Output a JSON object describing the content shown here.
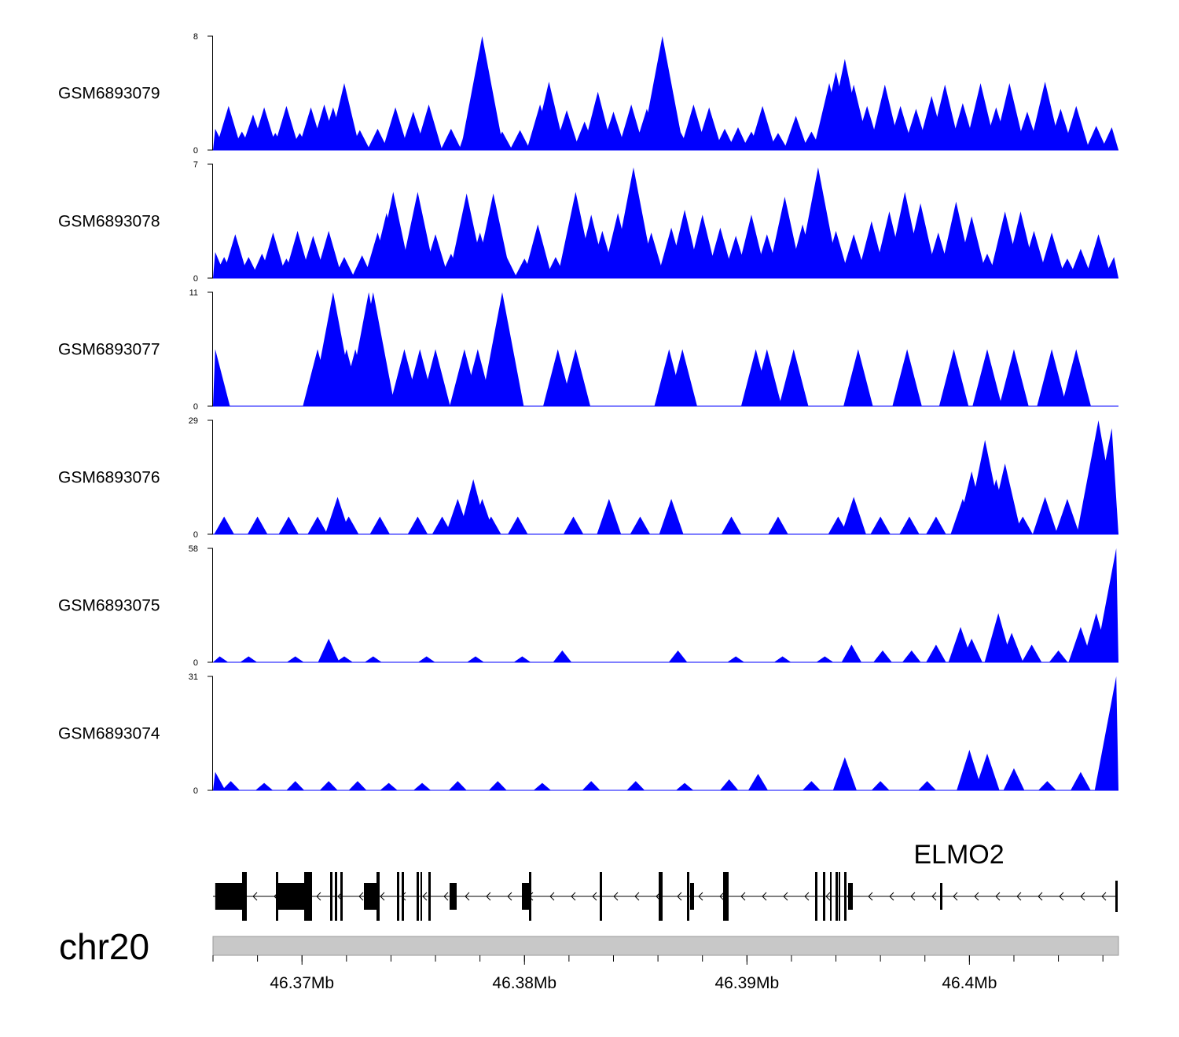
{
  "chart_data": {
    "type": "area",
    "title": "",
    "chromosome": "chr20",
    "xlim": [
      46.366,
      46.4067
    ],
    "x_unit": "Mb",
    "x_ticks": [
      46.37,
      46.38,
      46.39,
      46.4
    ],
    "x_tick_labels": [
      "46.37Mb",
      "46.38Mb",
      "46.39Mb",
      "46.4Mb"
    ],
    "fill_color": "#0000ff",
    "tracks": [
      {
        "name": "GSM6893079",
        "ymax": 8,
        "ymax_label": "8",
        "ymin_label": "0",
        "peaks": [
          [
            46.3661,
            1.5
          ],
          [
            46.3667,
            3.1
          ],
          [
            46.3673,
            1.3
          ],
          [
            46.3678,
            2.5
          ],
          [
            46.3683,
            3.0
          ],
          [
            46.3688,
            1.2
          ],
          [
            46.3693,
            3.1
          ],
          [
            46.3699,
            1.2
          ],
          [
            46.3704,
            3.0
          ],
          [
            46.371,
            3.2
          ],
          [
            46.3714,
            3.0
          ],
          [
            46.3719,
            4.7
          ],
          [
            46.3726,
            1.4
          ],
          [
            46.3734,
            1.5
          ],
          [
            46.3742,
            3.0
          ],
          [
            46.375,
            2.7
          ],
          [
            46.3757,
            3.2
          ],
          [
            46.3767,
            1.5
          ],
          [
            46.3776,
            2.5
          ],
          [
            46.3781,
            8.0
          ],
          [
            46.379,
            1.3
          ],
          [
            46.3798,
            1.4
          ],
          [
            46.3807,
            3.2
          ],
          [
            46.3811,
            4.8
          ],
          [
            46.3819,
            2.8
          ],
          [
            46.3827,
            2.0
          ],
          [
            46.3833,
            4.1
          ],
          [
            46.384,
            2.7
          ],
          [
            46.3848,
            3.2
          ],
          [
            46.3855,
            2.9
          ],
          [
            46.3862,
            8.0
          ],
          [
            46.387,
            1.3
          ],
          [
            46.3876,
            3.2
          ],
          [
            46.3883,
            3.0
          ],
          [
            46.389,
            1.5
          ],
          [
            46.3896,
            1.6
          ],
          [
            46.3902,
            1.3
          ],
          [
            46.3907,
            3.1
          ],
          [
            46.3914,
            1.2
          ],
          [
            46.3922,
            2.4
          ],
          [
            46.3929,
            1.3
          ],
          [
            46.3937,
            4.7
          ],
          [
            46.394,
            5.5
          ],
          [
            46.3944,
            6.4
          ],
          [
            46.3948,
            4.6
          ],
          [
            46.3954,
            3.1
          ],
          [
            46.3962,
            4.6
          ],
          [
            46.3969,
            3.1
          ],
          [
            46.3976,
            2.9
          ],
          [
            46.3983,
            3.8
          ],
          [
            46.3989,
            4.6
          ],
          [
            46.3997,
            3.3
          ],
          [
            46.4005,
            4.7
          ],
          [
            46.4012,
            3.0
          ],
          [
            46.4018,
            4.7
          ],
          [
            46.4026,
            2.7
          ],
          [
            46.4034,
            4.8
          ],
          [
            46.4041,
            2.9
          ],
          [
            46.4048,
            3.1
          ],
          [
            46.4057,
            1.7
          ],
          [
            46.4064,
            1.6
          ]
        ]
      },
      {
        "name": "GSM6893078",
        "ymax": 7,
        "ymax_label": "7",
        "ymin_label": "0",
        "peaks": [
          [
            46.3661,
            1.6
          ],
          [
            46.3665,
            1.3
          ],
          [
            46.367,
            2.7
          ],
          [
            46.3676,
            1.3
          ],
          [
            46.3682,
            1.5
          ],
          [
            46.3687,
            2.8
          ],
          [
            46.3693,
            1.2
          ],
          [
            46.3698,
            2.9
          ],
          [
            46.3705,
            2.6
          ],
          [
            46.3712,
            2.9
          ],
          [
            46.3719,
            1.3
          ],
          [
            46.3727,
            1.4
          ],
          [
            46.3734,
            2.8
          ],
          [
            46.3738,
            4.0
          ],
          [
            46.3741,
            5.3
          ],
          [
            46.3747,
            1.5
          ],
          [
            46.3752,
            5.3
          ],
          [
            46.376,
            2.7
          ],
          [
            46.3767,
            1.5
          ],
          [
            46.3774,
            5.2
          ],
          [
            46.378,
            2.8
          ],
          [
            46.3786,
            5.2
          ],
          [
            46.3792,
            1.3
          ],
          [
            46.38,
            1.2
          ],
          [
            46.3806,
            3.3
          ],
          [
            46.3814,
            1.3
          ],
          [
            46.3823,
            5.3
          ],
          [
            46.383,
            3.9
          ],
          [
            46.3835,
            2.9
          ],
          [
            46.3842,
            4.0
          ],
          [
            46.3849,
            6.8
          ],
          [
            46.3857,
            2.8
          ],
          [
            46.3866,
            3.1
          ],
          [
            46.3872,
            4.2
          ],
          [
            46.388,
            3.9
          ],
          [
            46.3888,
            3.1
          ],
          [
            46.3895,
            2.6
          ],
          [
            46.3902,
            3.9
          ],
          [
            46.3909,
            2.7
          ],
          [
            46.3917,
            5.0
          ],
          [
            46.3925,
            3.3
          ],
          [
            46.3932,
            6.8
          ],
          [
            46.394,
            2.9
          ],
          [
            46.3948,
            2.7
          ],
          [
            46.3956,
            3.5
          ],
          [
            46.3964,
            4.1
          ],
          [
            46.3971,
            5.3
          ],
          [
            46.3978,
            4.6
          ],
          [
            46.3986,
            2.8
          ],
          [
            46.3994,
            4.7
          ],
          [
            46.4001,
            3.8
          ],
          [
            46.4008,
            1.5
          ],
          [
            46.4016,
            4.1
          ],
          [
            46.4023,
            4.1
          ],
          [
            46.4029,
            2.9
          ],
          [
            46.4037,
            2.8
          ],
          [
            46.4044,
            1.2
          ],
          [
            46.405,
            1.8
          ],
          [
            46.4058,
            2.7
          ],
          [
            46.4065,
            1.3
          ]
        ]
      },
      {
        "name": "GSM6893077",
        "ymax": 11,
        "ymax_label": "11",
        "ymin_label": "0",
        "peaks": [
          [
            46.3661,
            5.5
          ],
          [
            46.3707,
            5.5
          ],
          [
            46.3714,
            11.0
          ],
          [
            46.372,
            5.5
          ],
          [
            46.3724,
            5.5
          ],
          [
            46.3728,
            5.5
          ],
          [
            46.373,
            11.0
          ],
          [
            46.3732,
            11.0
          ],
          [
            46.3746,
            5.5
          ],
          [
            46.3753,
            5.5
          ],
          [
            46.376,
            5.5
          ],
          [
            46.3773,
            5.5
          ],
          [
            46.3779,
            5.5
          ],
          [
            46.379,
            11.0
          ],
          [
            46.3815,
            5.5
          ],
          [
            46.3823,
            5.5
          ],
          [
            46.3865,
            5.5
          ],
          [
            46.3871,
            5.5
          ],
          [
            46.3904,
            5.5
          ],
          [
            46.3909,
            5.5
          ],
          [
            46.3921,
            5.5
          ],
          [
            46.395,
            5.5
          ],
          [
            46.3972,
            5.5
          ],
          [
            46.3993,
            5.5
          ],
          [
            46.4008,
            5.5
          ],
          [
            46.402,
            5.5
          ],
          [
            46.4037,
            5.5
          ],
          [
            46.4048,
            5.5
          ]
        ]
      },
      {
        "name": "GSM6893076",
        "ymax": 29,
        "ymax_label": "29",
        "ymin_label": "0",
        "peaks": [
          [
            46.3665,
            4.5
          ],
          [
            46.368,
            4.5
          ],
          [
            46.3694,
            4.5
          ],
          [
            46.3707,
            4.5
          ],
          [
            46.3716,
            9.5
          ],
          [
            46.3721,
            4.5
          ],
          [
            46.3735,
            4.5
          ],
          [
            46.3752,
            4.5
          ],
          [
            46.3763,
            4.5
          ],
          [
            46.377,
            9.0
          ],
          [
            46.3777,
            14.0
          ],
          [
            46.3781,
            9.0
          ],
          [
            46.3785,
            4.5
          ],
          [
            46.3797,
            4.5
          ],
          [
            46.3822,
            4.5
          ],
          [
            46.3838,
            9.0
          ],
          [
            46.3852,
            4.5
          ],
          [
            46.3866,
            9.0
          ],
          [
            46.3893,
            4.5
          ],
          [
            46.3914,
            4.5
          ],
          [
            46.3941,
            4.5
          ],
          [
            46.3948,
            9.5
          ],
          [
            46.396,
            4.5
          ],
          [
            46.3973,
            4.5
          ],
          [
            46.3985,
            4.5
          ],
          [
            46.3997,
            9.0
          ],
          [
            46.4001,
            16.0
          ],
          [
            46.4007,
            24.0
          ],
          [
            46.4012,
            14.0
          ],
          [
            46.4016,
            18.0
          ],
          [
            46.4024,
            4.5
          ],
          [
            46.4034,
            9.5
          ],
          [
            46.4044,
            9.0
          ],
          [
            46.4058,
            29.0
          ],
          [
            46.4064,
            27.0
          ]
        ]
      },
      {
        "name": "GSM6893075",
        "ymax": 58,
        "ymax_label": "58",
        "ymin_label": "0",
        "peaks": [
          [
            46.3663,
            3.0
          ],
          [
            46.3676,
            3.0
          ],
          [
            46.3697,
            3.0
          ],
          [
            46.3712,
            12.0
          ],
          [
            46.3719,
            3.0
          ],
          [
            46.3732,
            3.0
          ],
          [
            46.3756,
            3.0
          ],
          [
            46.3778,
            3.0
          ],
          [
            46.3799,
            3.0
          ],
          [
            46.3817,
            6.0
          ],
          [
            46.3869,
            6.0
          ],
          [
            46.3895,
            3.0
          ],
          [
            46.3916,
            3.0
          ],
          [
            46.3935,
            3.0
          ],
          [
            46.3947,
            9.0
          ],
          [
            46.3961,
            6.0
          ],
          [
            46.3974,
            6.0
          ],
          [
            46.3985,
            9.0
          ],
          [
            46.3996,
            18.0
          ],
          [
            46.4001,
            12.0
          ],
          [
            46.4013,
            25.0
          ],
          [
            46.4019,
            15.0
          ],
          [
            46.4028,
            9.0
          ],
          [
            46.404,
            6.0
          ],
          [
            46.405,
            18.0
          ],
          [
            46.4057,
            25.0
          ],
          [
            46.4066,
            58.0
          ]
        ]
      },
      {
        "name": "GSM6893074",
        "ymax": 31,
        "ymax_label": "31",
        "ymin_label": "0",
        "peaks": [
          [
            46.3661,
            5.0
          ],
          [
            46.3668,
            2.5
          ],
          [
            46.3683,
            2.0
          ],
          [
            46.3697,
            2.5
          ],
          [
            46.3712,
            2.5
          ],
          [
            46.3725,
            2.5
          ],
          [
            46.3739,
            2.0
          ],
          [
            46.3754,
            2.0
          ],
          [
            46.377,
            2.5
          ],
          [
            46.3788,
            2.5
          ],
          [
            46.3808,
            2.0
          ],
          [
            46.383,
            2.5
          ],
          [
            46.385,
            2.5
          ],
          [
            46.3872,
            2.0
          ],
          [
            46.3892,
            3.0
          ],
          [
            46.3905,
            4.5
          ],
          [
            46.3929,
            2.5
          ],
          [
            46.3944,
            9.0
          ],
          [
            46.396,
            2.5
          ],
          [
            46.3981,
            2.5
          ],
          [
            46.4,
            11.0
          ],
          [
            46.4008,
            10.0
          ],
          [
            46.402,
            6.0
          ],
          [
            46.4035,
            2.5
          ],
          [
            46.405,
            5.0
          ],
          [
            46.4066,
            31.0
          ]
        ]
      }
    ],
    "gene_track": {
      "gene_name": "ELMO2",
      "strand": "minus",
      "exons": [
        46.3661,
        46.3676,
        46.369,
        46.3712,
        46.3725,
        46.3738,
        46.375,
        46.376,
        46.3773,
        46.3793,
        46.3816,
        46.3832,
        46.3849,
        46.3865,
        46.3894,
        46.3904,
        46.3919,
        46.3942,
        46.3987,
        46.4067
      ]
    }
  }
}
